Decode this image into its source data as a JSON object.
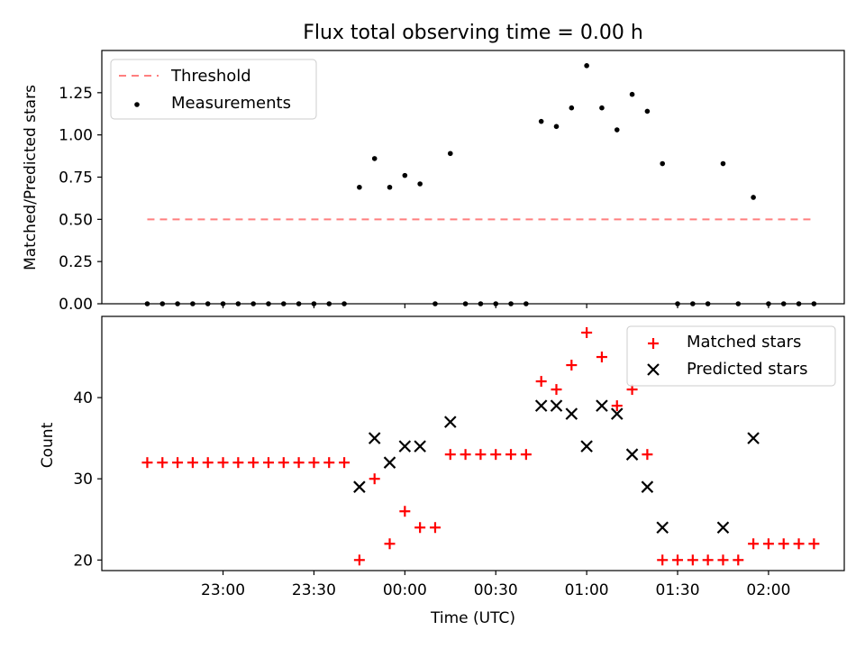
{
  "chart_data": {
    "type": "scatter",
    "title": "Flux total observing time = 0.00 h",
    "xlabel": "Time (UTC)",
    "x_ticks": [
      "23:00",
      "23:30",
      "00:00",
      "00:30",
      "01:00",
      "01:30",
      "02:00"
    ],
    "top": {
      "ylabel": "Matched/Predicted stars",
      "ylim": [
        0.0,
        1.5
      ],
      "y_ticks": [
        "0.00",
        "0.25",
        "0.50",
        "0.75",
        "1.00",
        "1.25"
      ],
      "legend_position": "upper-left",
      "threshold": {
        "name": "Threshold",
        "x": [
          "22:35",
          "02:15"
        ],
        "y": [
          0.5,
          0.5
        ],
        "color": "#ff7f7f"
      },
      "measurements": {
        "name": "Measurements",
        "color": "#000000",
        "points": [
          [
            "22:35",
            0.0
          ],
          [
            "22:40",
            0.0
          ],
          [
            "22:45",
            0.0
          ],
          [
            "22:50",
            0.0
          ],
          [
            "22:55",
            0.0
          ],
          [
            "23:00",
            0.0
          ],
          [
            "23:05",
            0.0
          ],
          [
            "23:10",
            0.0
          ],
          [
            "23:15",
            0.0
          ],
          [
            "23:20",
            0.0
          ],
          [
            "23:25",
            0.0
          ],
          [
            "23:30",
            0.0
          ],
          [
            "23:35",
            0.0
          ],
          [
            "23:40",
            0.0
          ],
          [
            "23:45",
            0.69
          ],
          [
            "23:50",
            0.86
          ],
          [
            "23:55",
            0.69
          ],
          [
            "00:00",
            0.76
          ],
          [
            "00:05",
            0.71
          ],
          [
            "00:10",
            0.0
          ],
          [
            "00:15",
            0.89
          ],
          [
            "00:20",
            0.0
          ],
          [
            "00:25",
            0.0
          ],
          [
            "00:30",
            0.0
          ],
          [
            "00:35",
            0.0
          ],
          [
            "00:40",
            0.0
          ],
          [
            "00:45",
            1.08
          ],
          [
            "00:50",
            1.05
          ],
          [
            "00:55",
            1.16
          ],
          [
            "01:00",
            1.41
          ],
          [
            "01:05",
            1.16
          ],
          [
            "01:10",
            1.03
          ],
          [
            "01:15",
            1.24
          ],
          [
            "01:20",
            1.14
          ],
          [
            "01:25",
            0.83
          ],
          [
            "01:30",
            0.0
          ],
          [
            "01:35",
            0.0
          ],
          [
            "01:40",
            0.0
          ],
          [
            "01:45",
            0.83
          ],
          [
            "01:50",
            0.0
          ],
          [
            "01:55",
            0.63
          ],
          [
            "02:00",
            0.0
          ],
          [
            "02:05",
            0.0
          ],
          [
            "02:10",
            0.0
          ],
          [
            "02:15",
            0.0
          ]
        ]
      }
    },
    "bottom": {
      "ylabel": "Count",
      "ylim": [
        18.7,
        50
      ],
      "y_ticks": [
        "20",
        "30",
        "40"
      ],
      "legend_position": "upper-right",
      "series": [
        {
          "name": "Matched stars",
          "marker": "plus",
          "color": "#ff0000",
          "points": [
            [
              "22:35",
              32
            ],
            [
              "22:40",
              32
            ],
            [
              "22:45",
              32
            ],
            [
              "22:50",
              32
            ],
            [
              "22:55",
              32
            ],
            [
              "23:00",
              32
            ],
            [
              "23:05",
              32
            ],
            [
              "23:10",
              32
            ],
            [
              "23:15",
              32
            ],
            [
              "23:20",
              32
            ],
            [
              "23:25",
              32
            ],
            [
              "23:30",
              32
            ],
            [
              "23:35",
              32
            ],
            [
              "23:40",
              32
            ],
            [
              "23:45",
              20
            ],
            [
              "23:50",
              30
            ],
            [
              "23:55",
              22
            ],
            [
              "00:00",
              26
            ],
            [
              "00:05",
              24
            ],
            [
              "00:10",
              24
            ],
            [
              "00:15",
              33
            ],
            [
              "00:20",
              33
            ],
            [
              "00:25",
              33
            ],
            [
              "00:30",
              33
            ],
            [
              "00:35",
              33
            ],
            [
              "00:40",
              33
            ],
            [
              "00:45",
              42
            ],
            [
              "00:50",
              41
            ],
            [
              "00:55",
              44
            ],
            [
              "01:00",
              48
            ],
            [
              "01:05",
              45
            ],
            [
              "01:10",
              39
            ],
            [
              "01:15",
              41
            ],
            [
              "01:20",
              33
            ],
            [
              "01:25",
              20
            ],
            [
              "01:30",
              20
            ],
            [
              "01:35",
              20
            ],
            [
              "01:40",
              20
            ],
            [
              "01:45",
              20
            ],
            [
              "01:50",
              20
            ],
            [
              "01:55",
              22
            ],
            [
              "02:00",
              22
            ],
            [
              "02:05",
              22
            ],
            [
              "02:10",
              22
            ],
            [
              "02:15",
              22
            ]
          ]
        },
        {
          "name": "Predicted stars",
          "marker": "x",
          "color": "#000000",
          "points": [
            [
              "23:45",
              29
            ],
            [
              "23:50",
              35
            ],
            [
              "23:55",
              32
            ],
            [
              "00:00",
              34
            ],
            [
              "00:05",
              34
            ],
            [
              "00:15",
              37
            ],
            [
              "00:45",
              39
            ],
            [
              "00:50",
              39
            ],
            [
              "00:55",
              38
            ],
            [
              "01:00",
              34
            ],
            [
              "01:05",
              39
            ],
            [
              "01:10",
              38
            ],
            [
              "01:15",
              33
            ],
            [
              "01:20",
              29
            ],
            [
              "01:25",
              24
            ],
            [
              "01:45",
              24
            ],
            [
              "01:55",
              35
            ]
          ]
        }
      ]
    }
  }
}
